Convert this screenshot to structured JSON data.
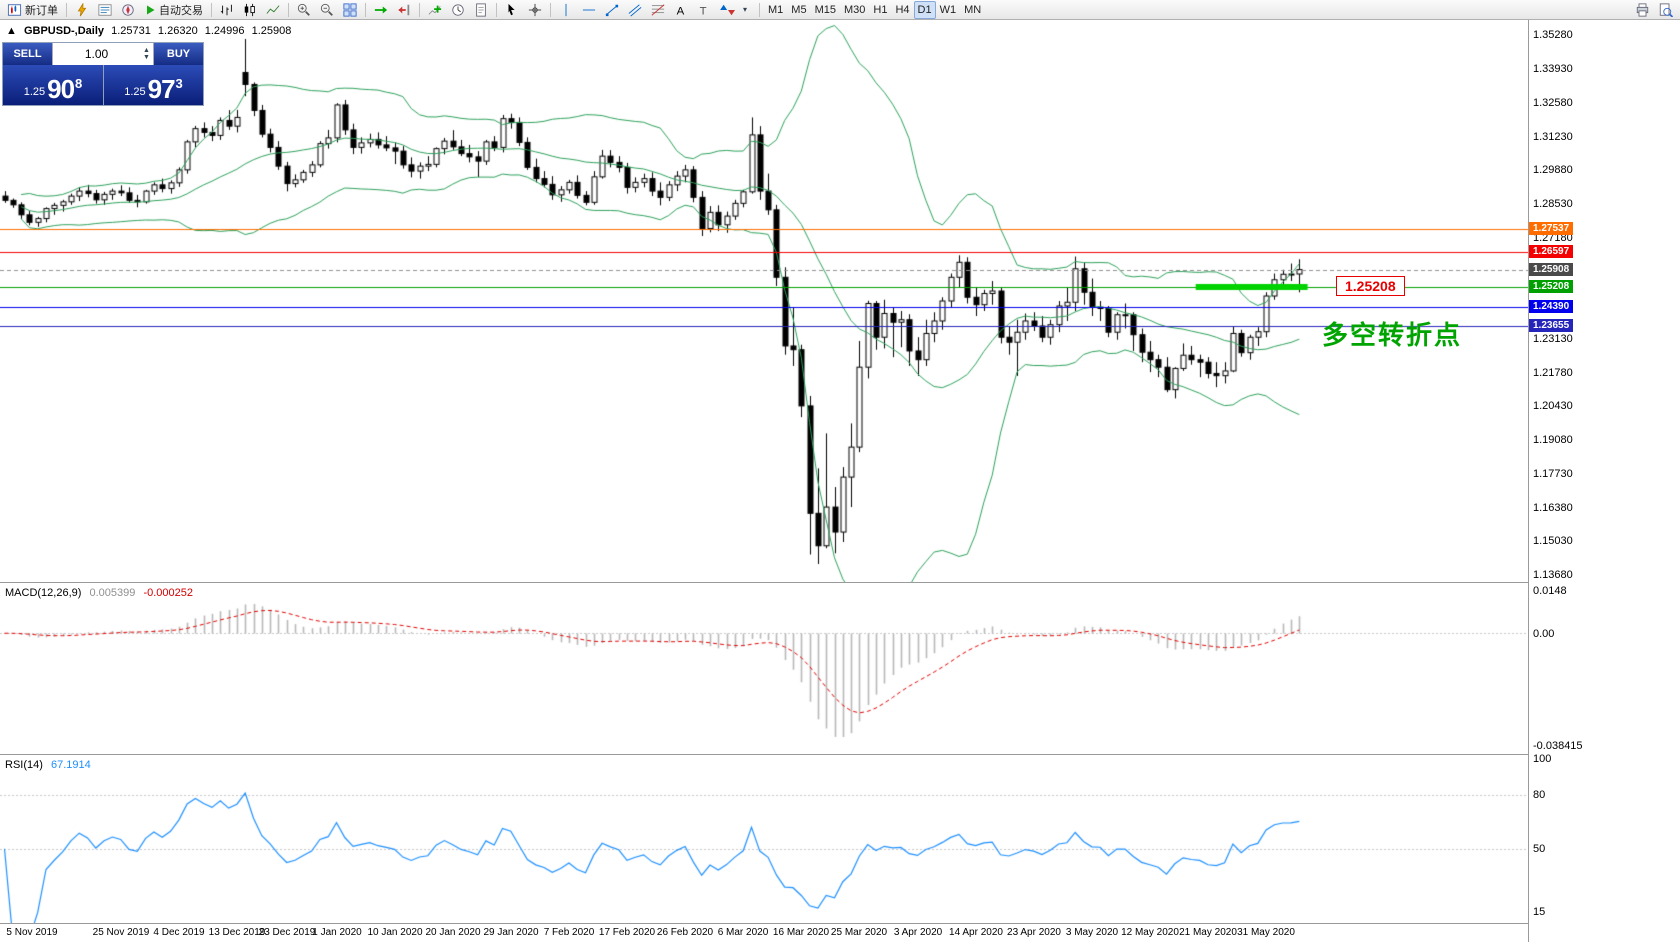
{
  "toolbar": {
    "new_order": "新订单",
    "auto_trading": "自动交易",
    "timeframes": [
      "M1",
      "M5",
      "M15",
      "M30",
      "H1",
      "H4",
      "D1",
      "W1",
      "MN"
    ],
    "active_timeframe": "D1"
  },
  "one_click": {
    "sell_label": "SELL",
    "buy_label": "BUY",
    "volume": "1.00",
    "sell_price_prefix": "1.25",
    "sell_price_big": "90",
    "sell_price_sup": "8",
    "buy_price_prefix": "1.25",
    "buy_price_big": "97",
    "buy_price_sup": "3"
  },
  "chart_header": {
    "collapse_glyph": "▲",
    "symbol_period": "GBPUSD-,Daily",
    "open": "1.25731",
    "high": "1.26320",
    "low": "1.24996",
    "close": "1.25908"
  },
  "annotations": {
    "price_box": "1.25208",
    "note_cn": "多空转折点",
    "note_color": "#00a400"
  },
  "macd": {
    "name": "MACD(12,26,9)",
    "value_main": "0.005399",
    "value_signal": "-0.000252",
    "axis_top": "0.0148",
    "axis_zero": "0.00",
    "axis_bottom": "-0.038415",
    "scale_max": 0.0148,
    "scale_min": -0.038415
  },
  "rsi": {
    "name": "RSI(14)",
    "value": "67.1914",
    "axis": [
      {
        "v": 100,
        "label": "100"
      },
      {
        "v": 80,
        "label": "80"
      },
      {
        "v": 50,
        "label": "50"
      },
      {
        "v": 15,
        "label": "15"
      }
    ],
    "levels": [
      80,
      50
    ]
  },
  "price_axis_ticks": [
    "1.35280",
    "1.33930",
    "1.32580",
    "1.31230",
    "1.29880",
    "1.28530",
    "1.27180",
    "1.25830",
    "1.24480",
    "1.23130",
    "1.21780",
    "1.20430",
    "1.19080",
    "1.17730",
    "1.16380",
    "1.15030",
    "1.13680"
  ],
  "chart_data": {
    "type": "candlestick",
    "symbol": "GBPUSD",
    "timeframe": "Daily",
    "price_range_top": 1.359,
    "price_range_bottom": 1.134,
    "bollinger": {
      "period": 20,
      "deviation": 2,
      "color": "#2ca05a"
    },
    "horizontal_levels": [
      {
        "price": 1.27537,
        "label": "1.27537",
        "color": "#ff6d00"
      },
      {
        "price": 1.26597,
        "label": "1.26597",
        "color": "#f40000"
      },
      {
        "price": 1.25208,
        "label": "1.25208",
        "color": "#00a000"
      },
      {
        "price": 1.2439,
        "label": "1.24390",
        "color": "#0000ee"
      },
      {
        "price": 1.23655,
        "label": "1.23655",
        "color": "#2525bb"
      }
    ],
    "thick_segment": {
      "price": 1.25208,
      "from_index": 144,
      "to_index": 157,
      "color": "#00d300",
      "width": 6
    },
    "current_price": {
      "value": 1.25908,
      "label": "1.25908",
      "tag_color": "#4a4a4a"
    },
    "time_labels": [
      {
        "i": 0,
        "t": "5 Nov 2019"
      },
      {
        "i": 14,
        "t": "25 Nov 2019"
      },
      {
        "i": 21,
        "t": "4 Dec 2019"
      },
      {
        "i": 28,
        "t": "13 Dec 2019"
      },
      {
        "i": 34,
        "t": "23 Dec 2019"
      },
      {
        "i": 40,
        "t": "1 Jan 2020"
      },
      {
        "i": 47,
        "t": "10 Jan 2020"
      },
      {
        "i": 54,
        "t": "20 Jan 2020"
      },
      {
        "i": 61,
        "t": "29 Jan 2020"
      },
      {
        "i": 68,
        "t": "7 Feb 2020"
      },
      {
        "i": 75,
        "t": "17 Feb 2020"
      },
      {
        "i": 82,
        "t": "26 Feb 2020"
      },
      {
        "i": 89,
        "t": "6 Mar 2020"
      },
      {
        "i": 96,
        "t": "16 Mar 2020"
      },
      {
        "i": 103,
        "t": "25 Mar 2020"
      },
      {
        "i": 110,
        "t": "3 Apr 2020"
      },
      {
        "i": 117,
        "t": "14 Apr 2020"
      },
      {
        "i": 124,
        "t": "23 Apr 2020"
      },
      {
        "i": 131,
        "t": "3 May 2020"
      },
      {
        "i": 138,
        "t": "12 May 2020"
      },
      {
        "i": 145,
        "t": "21 May 2020"
      },
      {
        "i": 152,
        "t": "31 May 2020"
      }
    ],
    "candles": [
      [
        1.2885,
        1.2905,
        1.2858,
        1.2868
      ],
      [
        1.2868,
        1.2875,
        1.2838,
        1.285
      ],
      [
        1.285,
        1.286,
        1.2794,
        1.281
      ],
      [
        1.281,
        1.2825,
        1.2768,
        1.278
      ],
      [
        1.278,
        1.2802,
        1.2762,
        1.2795
      ],
      [
        1.2795,
        1.284,
        1.278,
        1.2835
      ],
      [
        1.2835,
        1.2858,
        1.281,
        1.2848
      ],
      [
        1.2848,
        1.287,
        1.2823,
        1.2862
      ],
      [
        1.2862,
        1.2895,
        1.285,
        1.2885
      ],
      [
        1.2885,
        1.292,
        1.2865,
        1.2905
      ],
      [
        1.2905,
        1.293,
        1.288,
        1.2895
      ],
      [
        1.2895,
        1.291,
        1.2855,
        1.287
      ],
      [
        1.287,
        1.2902,
        1.285,
        1.2892
      ],
      [
        1.2892,
        1.2915,
        1.287,
        1.2905
      ],
      [
        1.2905,
        1.2928,
        1.2885,
        1.2898
      ],
      [
        1.2898,
        1.292,
        1.2858,
        1.2868
      ],
      [
        1.2868,
        1.289,
        1.284,
        1.2862
      ],
      [
        1.2862,
        1.291,
        1.2855,
        1.2905
      ],
      [
        1.2905,
        1.294,
        1.289,
        1.293
      ],
      [
        1.293,
        1.2955,
        1.29,
        1.2915
      ],
      [
        1.2915,
        1.2948,
        1.2895,
        1.2938
      ],
      [
        1.2938,
        1.3,
        1.2922,
        1.299
      ],
      [
        1.299,
        1.311,
        1.2975,
        1.3102
      ],
      [
        1.3102,
        1.3166,
        1.308,
        1.3155
      ],
      [
        1.3155,
        1.318,
        1.312,
        1.314
      ],
      [
        1.314,
        1.3165,
        1.3105,
        1.3128
      ],
      [
        1.3128,
        1.32,
        1.311,
        1.3188
      ],
      [
        1.3188,
        1.3229,
        1.315,
        1.3165
      ],
      [
        1.3165,
        1.323,
        1.314,
        1.32
      ],
      [
        1.338,
        1.3514,
        1.3285,
        1.3332
      ],
      [
        1.3332,
        1.334,
        1.3205,
        1.3228
      ],
      [
        1.3228,
        1.325,
        1.312,
        1.3133
      ],
      [
        1.3133,
        1.3155,
        1.306,
        1.308
      ],
      [
        1.308,
        1.3105,
        1.299,
        1.3005
      ],
      [
        1.3005,
        1.3022,
        1.2904,
        1.2935
      ],
      [
        1.2935,
        1.2972,
        1.292,
        1.295
      ],
      [
        1.295,
        1.299,
        1.2938,
        1.298
      ],
      [
        1.298,
        1.3025,
        1.2962,
        1.301
      ],
      [
        1.301,
        1.3105,
        1.3,
        1.3095
      ],
      [
        1.3095,
        1.315,
        1.3075,
        1.3118
      ],
      [
        1.3118,
        1.3257,
        1.31,
        1.325
      ],
      [
        1.325,
        1.327,
        1.313,
        1.315
      ],
      [
        1.315,
        1.3175,
        1.3053,
        1.308
      ],
      [
        1.308,
        1.312,
        1.3055,
        1.3098
      ],
      [
        1.3098,
        1.3135,
        1.308,
        1.3112
      ],
      [
        1.3112,
        1.314,
        1.3075,
        1.309
      ],
      [
        1.309,
        1.3125,
        1.3065,
        1.3078
      ],
      [
        1.3078,
        1.31,
        1.3013,
        1.3065
      ],
      [
        1.3065,
        1.3085,
        1.2995,
        1.301
      ],
      [
        1.301,
        1.304,
        1.296,
        1.2985
      ],
      [
        1.2985,
        1.302,
        1.2955,
        1.3005
      ],
      [
        1.3005,
        1.3045,
        1.2985,
        1.3012
      ],
      [
        1.3012,
        1.308,
        1.3,
        1.3075
      ],
      [
        1.3075,
        1.3118,
        1.3052,
        1.3105
      ],
      [
        1.3105,
        1.3149,
        1.307,
        1.3082
      ],
      [
        1.3082,
        1.311,
        1.3045,
        1.3055
      ],
      [
        1.3055,
        1.309,
        1.302,
        1.3042
      ],
      [
        1.3042,
        1.3065,
        1.2961,
        1.3025
      ],
      [
        1.3025,
        1.311,
        1.301,
        1.3102
      ],
      [
        1.3102,
        1.3125,
        1.3065,
        1.308
      ],
      [
        1.308,
        1.321,
        1.306,
        1.3195
      ],
      [
        1.3195,
        1.3215,
        1.3155,
        1.318
      ],
      [
        1.318,
        1.32,
        1.3085,
        1.31
      ],
      [
        1.31,
        1.312,
        1.299,
        1.3
      ],
      [
        1.3,
        1.3035,
        1.294,
        1.2955
      ],
      [
        1.2955,
        1.2985,
        1.292,
        1.2932
      ],
      [
        1.2932,
        1.2965,
        1.287,
        1.289
      ],
      [
        1.289,
        1.2925,
        1.2862,
        1.291
      ],
      [
        1.291,
        1.295,
        1.2895,
        1.294
      ],
      [
        1.294,
        1.2968,
        1.2875,
        1.2888
      ],
      [
        1.2888,
        1.2905,
        1.2848,
        1.286
      ],
      [
        1.286,
        1.2985,
        1.285,
        1.2962
      ],
      [
        1.2962,
        1.307,
        1.2955,
        1.3045
      ],
      [
        1.3045,
        1.3069,
        1.3,
        1.302
      ],
      [
        1.302,
        1.3045,
        1.298,
        1.3
      ],
      [
        1.3,
        1.3018,
        1.2895,
        1.292
      ],
      [
        1.292,
        1.296,
        1.29,
        1.294
      ],
      [
        1.294,
        1.2975,
        1.292,
        1.2955
      ],
      [
        1.2955,
        1.298,
        1.2885,
        1.2905
      ],
      [
        1.2905,
        1.294,
        1.2848,
        1.288
      ],
      [
        1.288,
        1.2945,
        1.2865,
        1.293
      ],
      [
        1.293,
        1.2985,
        1.2905,
        1.2965
      ],
      [
        1.2965,
        1.301,
        1.294,
        1.299
      ],
      [
        1.299,
        1.3005,
        1.286,
        1.288
      ],
      [
        1.288,
        1.2905,
        1.2725,
        1.2755
      ],
      [
        1.2755,
        1.2845,
        1.274,
        1.282
      ],
      [
        1.282,
        1.2848,
        1.2745,
        1.277
      ],
      [
        1.277,
        1.2823,
        1.2738,
        1.2805
      ],
      [
        1.2805,
        1.287,
        1.279,
        1.2856
      ],
      [
        1.2856,
        1.291,
        1.284,
        1.2902
      ],
      [
        1.2902,
        1.32,
        1.2895,
        1.313
      ],
      [
        1.313,
        1.3165,
        1.287,
        1.2905
      ],
      [
        1.2905,
        1.2975,
        1.281,
        1.283
      ],
      [
        1.283,
        1.285,
        1.2525,
        1.256
      ],
      [
        1.256,
        1.26,
        1.225,
        1.2285
      ],
      [
        1.2285,
        1.244,
        1.2205,
        1.227
      ],
      [
        1.227,
        1.229,
        1.2,
        1.2045
      ],
      [
        1.2045,
        1.2085,
        1.145,
        1.1615
      ],
      [
        1.1615,
        1.1795,
        1.1412,
        1.1485
      ],
      [
        1.1485,
        1.1935,
        1.1475,
        1.164
      ],
      [
        1.164,
        1.172,
        1.1455,
        1.154
      ],
      [
        1.154,
        1.18,
        1.15,
        1.176
      ],
      [
        1.176,
        1.1975,
        1.164,
        1.188
      ],
      [
        1.188,
        1.2305,
        1.186,
        1.22
      ],
      [
        1.22,
        1.2466,
        1.2155,
        1.2455
      ],
      [
        1.2455,
        1.2465,
        1.227,
        1.232
      ],
      [
        1.232,
        1.247,
        1.2275,
        1.2415
      ],
      [
        1.2415,
        1.244,
        1.224,
        1.238
      ],
      [
        1.238,
        1.2425,
        1.228,
        1.239
      ],
      [
        1.239,
        1.2412,
        1.2205,
        1.2265
      ],
      [
        1.2265,
        1.232,
        1.2165,
        1.223
      ],
      [
        1.223,
        1.239,
        1.2205,
        1.2335
      ],
      [
        1.2335,
        1.242,
        1.23,
        1.2385
      ],
      [
        1.2385,
        1.248,
        1.235,
        1.2465
      ],
      [
        1.2465,
        1.2575,
        1.244,
        1.256
      ],
      [
        1.256,
        1.2648,
        1.252,
        1.262
      ],
      [
        1.262,
        1.264,
        1.2455,
        1.248
      ],
      [
        1.248,
        1.252,
        1.2405,
        1.245
      ],
      [
        1.245,
        1.251,
        1.2425,
        1.2495
      ],
      [
        1.2495,
        1.2545,
        1.245,
        1.2505
      ],
      [
        1.2505,
        1.252,
        1.2295,
        1.232
      ],
      [
        1.232,
        1.2365,
        1.225,
        1.23
      ],
      [
        1.23,
        1.239,
        1.2165,
        1.234
      ],
      [
        1.234,
        1.2415,
        1.231,
        1.2385
      ],
      [
        1.2385,
        1.242,
        1.2345,
        1.2365
      ],
      [
        1.2365,
        1.2405,
        1.23,
        1.232
      ],
      [
        1.232,
        1.239,
        1.229,
        1.237
      ],
      [
        1.237,
        1.2465,
        1.234,
        1.2445
      ],
      [
        1.2445,
        1.252,
        1.2385,
        1.246
      ],
      [
        1.246,
        1.2643,
        1.2425,
        1.2594
      ],
      [
        1.2594,
        1.262,
        1.245,
        1.25
      ],
      [
        1.25,
        1.2555,
        1.2405,
        1.244
      ],
      [
        1.244,
        1.2465,
        1.2385,
        1.2435
      ],
      [
        1.2435,
        1.2445,
        1.232,
        1.234
      ],
      [
        1.234,
        1.242,
        1.231,
        1.241
      ],
      [
        1.241,
        1.2455,
        1.2355,
        1.241
      ],
      [
        1.241,
        1.242,
        1.2265,
        1.233
      ],
      [
        1.233,
        1.2355,
        1.222,
        1.226
      ],
      [
        1.226,
        1.2305,
        1.218,
        1.223
      ],
      [
        1.223,
        1.225,
        1.216,
        1.22
      ],
      [
        1.22,
        1.224,
        1.21,
        1.211
      ],
      [
        1.211,
        1.22,
        1.2075,
        1.2195
      ],
      [
        1.2195,
        1.2295,
        1.2185,
        1.2248
      ],
      [
        1.2248,
        1.2285,
        1.221,
        1.223
      ],
      [
        1.223,
        1.225,
        1.216,
        1.222
      ],
      [
        1.222,
        1.224,
        1.2155,
        1.2175
      ],
      [
        1.2175,
        1.222,
        1.212,
        1.2166
      ],
      [
        1.2166,
        1.222,
        1.2135,
        1.2185
      ],
      [
        1.2185,
        1.2365,
        1.218,
        1.2335
      ],
      [
        1.2335,
        1.235,
        1.2242,
        1.2258
      ],
      [
        1.2258,
        1.233,
        1.223,
        1.232
      ],
      [
        1.232,
        1.236,
        1.2285,
        1.2342
      ],
      [
        1.2342,
        1.25,
        1.232,
        1.2485
      ],
      [
        1.2485,
        1.2575,
        1.247,
        1.255
      ],
      [
        1.255,
        1.259,
        1.2515,
        1.2572
      ],
      [
        1.2572,
        1.2615,
        1.2545,
        1.2573
      ],
      [
        1.25731,
        1.2632,
        1.24996,
        1.25908
      ]
    ]
  }
}
